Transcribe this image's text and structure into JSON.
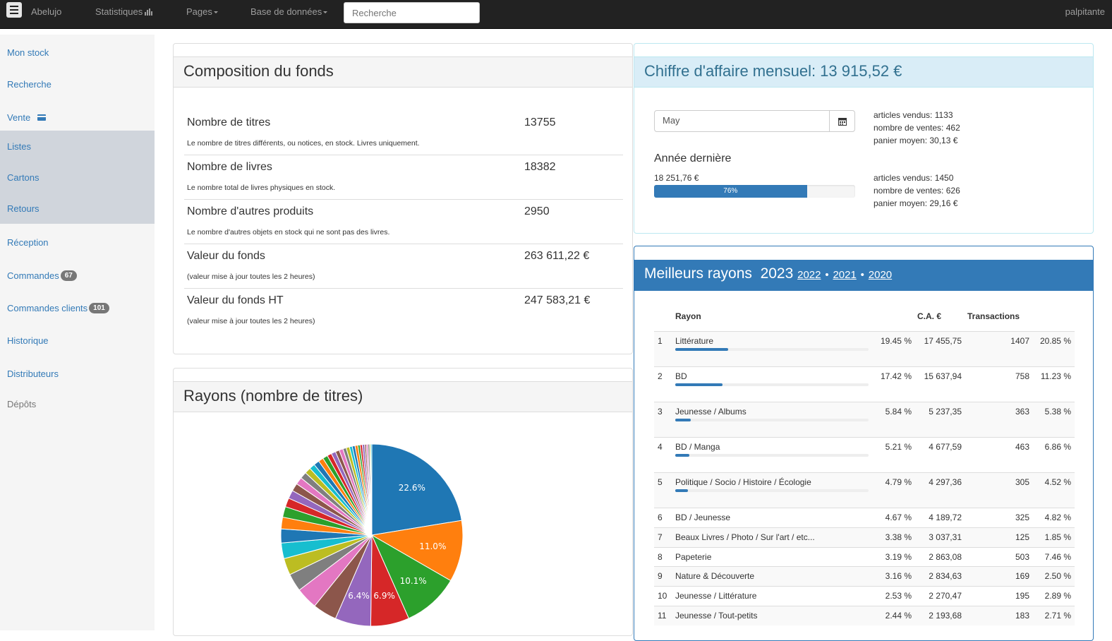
{
  "nav": {
    "brand": "Abelujo",
    "stats": "Statistiques",
    "pages": "Pages",
    "db": "Base de données",
    "search_placeholder": "Recherche",
    "user": "palpitante"
  },
  "sidebar": {
    "items": [
      {
        "label": "Mon stock"
      },
      {
        "label": "Recherche"
      },
      {
        "label": "Vente"
      },
      {
        "label": "Listes"
      },
      {
        "label": "Cartons"
      },
      {
        "label": "Retours"
      },
      {
        "label": "Réception"
      },
      {
        "label": "Commandes",
        "badge": "67"
      },
      {
        "label": "Commandes clients",
        "badge": "101"
      },
      {
        "label": "Historique"
      },
      {
        "label": "Distributeurs"
      },
      {
        "label": "Dépôts"
      }
    ]
  },
  "composition": {
    "title": "Composition du fonds",
    "rows": [
      {
        "label": "Nombre de titres",
        "value": "13755",
        "desc": "Le nombre de titres différents, ou notices, en stock. Livres uniquement."
      },
      {
        "label": "Nombre de livres",
        "value": "18382",
        "desc": "Le nombre total de livres physiques en stock."
      },
      {
        "label": "Nombre d'autres produits",
        "value": "2950",
        "desc": "Le nombre d'autres objets en stock qui ne sont pas des livres."
      },
      {
        "label": "Valeur du fonds",
        "value": "263 611,22 €",
        "desc": "(valeur mise à jour toutes les 2 heures)"
      },
      {
        "label": "Valeur du fonds HT",
        "value": "247 583,21 €",
        "desc": "(valeur mise à jour toutes les 2 heures)"
      }
    ]
  },
  "rayons_pie": {
    "title": "Rayons (nombre de titres)"
  },
  "chart_data": {
    "type": "pie",
    "values": [
      22.6,
      11.0,
      10.1,
      6.9,
      6.4,
      4.3,
      3.9,
      3.2,
      3.0,
      2.8,
      2.5,
      2.1,
      1.9,
      1.6,
      1.5,
      1.4,
      1.3,
      1.2,
      1.1,
      1.0,
      1.0,
      0.9,
      0.9,
      0.8,
      0.8,
      0.7,
      0.7,
      0.6,
      0.6,
      0.5,
      0.5,
      0.5,
      0.4,
      0.4,
      0.4,
      0.3,
      0.3,
      0.3,
      0.2,
      0.2
    ],
    "labels_shown": [
      "22.6%",
      "11.0%",
      "10.1%",
      "6.9%",
      "6.4%"
    ],
    "colors": [
      "#1f77b4",
      "#ff7f0e",
      "#2ca02c",
      "#d62728",
      "#9467bd",
      "#8c564b",
      "#e377c2",
      "#7f7f7f",
      "#bcbd22",
      "#17becf"
    ]
  },
  "ca": {
    "title": "Chiffre d'affaire mensuel: 13 915,52 €",
    "month": "May",
    "current": [
      "articles vendus: 1133",
      "nombre de ventes: 462",
      "panier moyen: 30,13 €"
    ],
    "last_year_label": "Année dernière",
    "last_year_value": "18 251,76 €",
    "progress": 76,
    "progress_label": "76%",
    "last": [
      "articles vendus: 1450",
      "nombre de ventes: 626",
      "panier moyen: 29,16 €"
    ]
  },
  "best": {
    "title": "Meilleurs rayons",
    "year": "2023",
    "years": [
      "2022",
      "2021",
      "2020"
    ],
    "headers": {
      "rayon": "Rayon",
      "ca": "C.A. €",
      "trans": "Transactions"
    },
    "rows": [
      {
        "n": "1",
        "rayon": "Littérature",
        "pct": "19.45 %",
        "ca": "17 455,75",
        "tr": "1407",
        "pct2": "20.85 %",
        "bar": 19.45
      },
      {
        "n": "2",
        "rayon": "BD",
        "pct": "17.42 %",
        "ca": "15 637,94",
        "tr": "758",
        "pct2": "11.23 %",
        "bar": 17.42
      },
      {
        "n": "3",
        "rayon": "Jeunesse / Albums",
        "pct": "5.84 %",
        "ca": "5 237,35",
        "tr": "363",
        "pct2": "5.38 %",
        "bar": 5.84
      },
      {
        "n": "4",
        "rayon": "BD / Manga",
        "pct": "5.21 %",
        "ca": "4 677,59",
        "tr": "463",
        "pct2": "6.86 %",
        "bar": 5.21
      },
      {
        "n": "5",
        "rayon": "Politique / Socio / Histoire / Écologie",
        "pct": "4.79 %",
        "ca": "4 297,36",
        "tr": "305",
        "pct2": "4.52 %",
        "bar": 4.79
      },
      {
        "n": "6",
        "rayon": "BD / Jeunesse",
        "pct": "4.67 %",
        "ca": "4 189,72",
        "tr": "325",
        "pct2": "4.82 %"
      },
      {
        "n": "7",
        "rayon": "Beaux Livres / Photo / Sur l'art / etc...",
        "pct": "3.38 %",
        "ca": "3 037,31",
        "tr": "125",
        "pct2": "1.85 %"
      },
      {
        "n": "8",
        "rayon": "Papeterie",
        "pct": "3.19 %",
        "ca": "2 863,08",
        "tr": "503",
        "pct2": "7.46 %"
      },
      {
        "n": "9",
        "rayon": "Nature & Découverte",
        "pct": "3.16 %",
        "ca": "2 834,63",
        "tr": "169",
        "pct2": "2.50 %"
      },
      {
        "n": "10",
        "rayon": "Jeunesse / Littérature",
        "pct": "2.53 %",
        "ca": "2 270,47",
        "tr": "195",
        "pct2": "2.89 %"
      },
      {
        "n": "11",
        "rayon": "Jeunesse / Tout-petits",
        "pct": "2.44 %",
        "ca": "2 193,68",
        "tr": "183",
        "pct2": "2.71 %"
      }
    ]
  }
}
